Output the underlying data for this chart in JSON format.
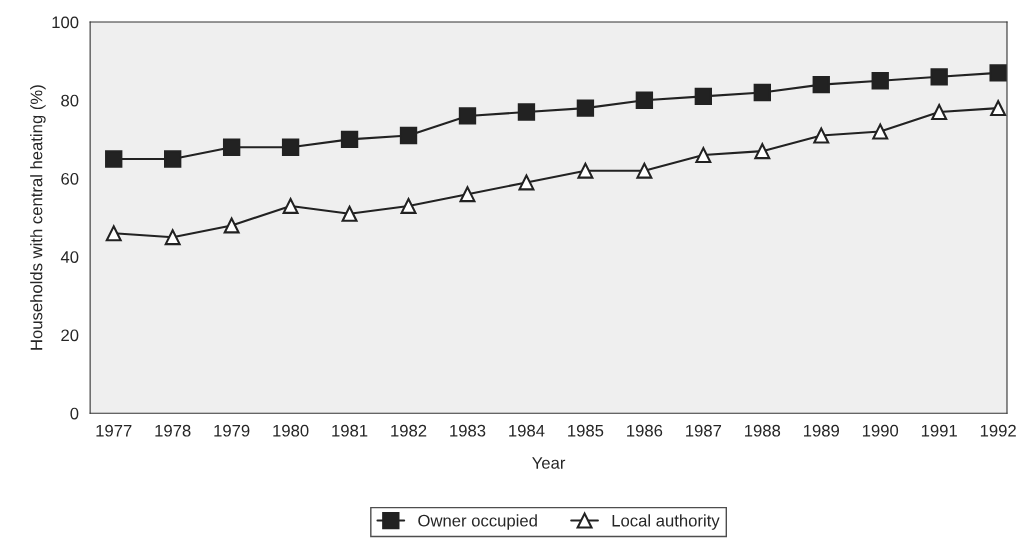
{
  "chart_data": {
    "type": "line",
    "xlabel": "Year",
    "ylabel": "Households with central heating (%)",
    "categories": [
      "1977",
      "1978",
      "1979",
      "1980",
      "1981",
      "1982",
      "1983",
      "1984",
      "1985",
      "1986",
      "1987",
      "1988",
      "1989",
      "1990",
      "1991",
      "1992"
    ],
    "series": [
      {
        "name": "Owner occupied",
        "color": "#222222",
        "marker": "square",
        "values": [
          65,
          65,
          68,
          68,
          70,
          71,
          76,
          77,
          78,
          80,
          81,
          82,
          84,
          85,
          86,
          87
        ]
      },
      {
        "name": "Local authority",
        "color": "#222222",
        "marker": "triangle",
        "values": [
          46,
          45,
          48,
          53,
          51,
          53,
          56,
          59,
          62,
          62,
          66,
          67,
          71,
          72,
          77,
          78
        ]
      }
    ],
    "ylim": [
      0,
      100
    ],
    "yticks": [
      0,
      20,
      40,
      60,
      80,
      100
    ],
    "grid": false,
    "legend": "bottom",
    "line_style": "solid"
  }
}
